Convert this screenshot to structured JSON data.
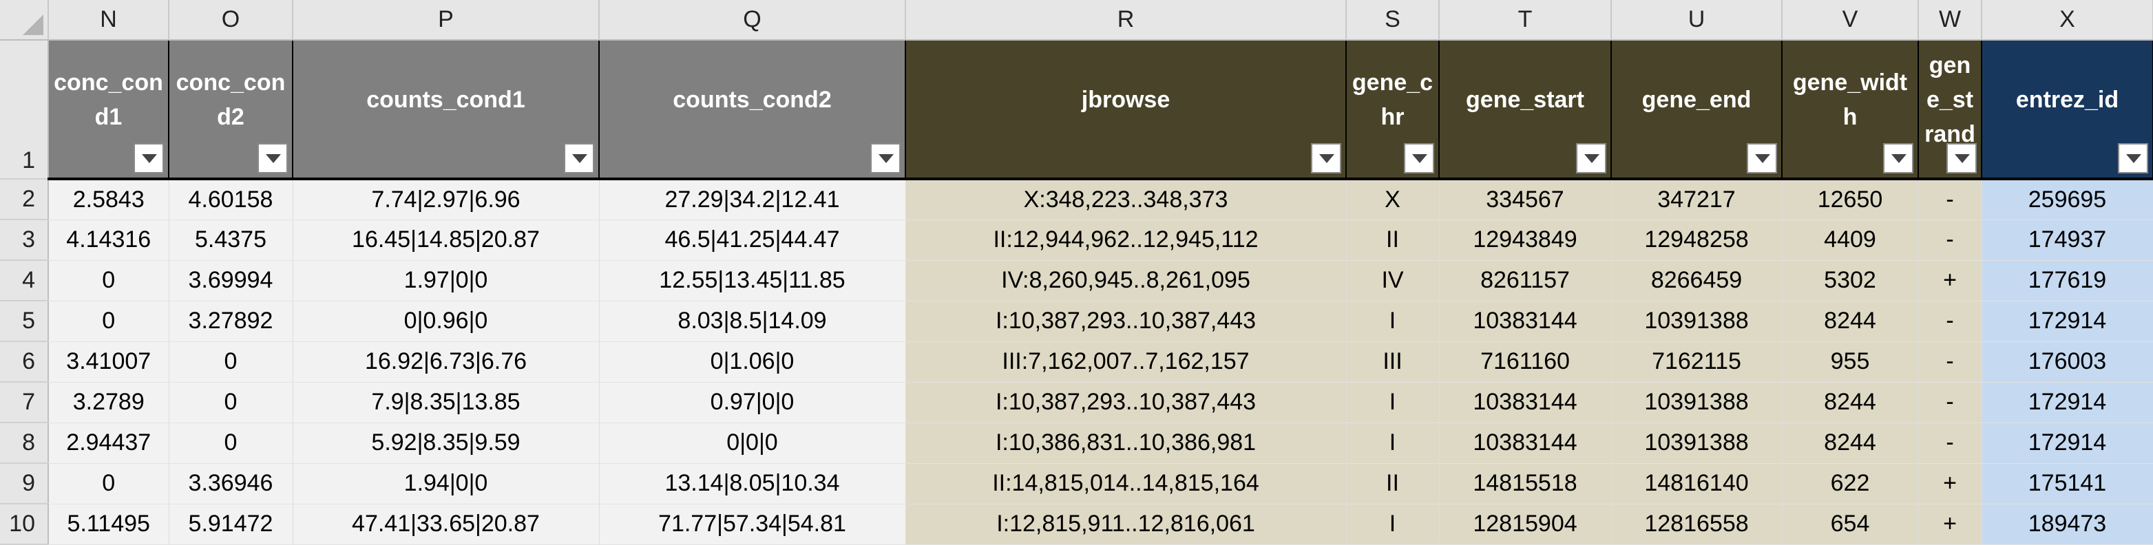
{
  "sheet": {
    "column_letters": [
      "N",
      "O",
      "P",
      "Q",
      "R",
      "S",
      "T",
      "U",
      "V",
      "W",
      "X"
    ],
    "headers": [
      "conc_cond1",
      "conc_cond2",
      "counts_cond1",
      "counts_cond2",
      "jbrowse",
      "gene_chr",
      "gene_start",
      "gene_end",
      "gene_width",
      "gene_strand",
      "entrez_id"
    ],
    "header_row_number": "1",
    "rows": [
      {
        "n": "2",
        "cells": [
          "2.5843",
          "4.60158",
          "7.74|2.97|6.96",
          "27.29|34.2|12.41",
          "X:348,223..348,373",
          "X",
          "334567",
          "347217",
          "12650",
          "-",
          "259695"
        ]
      },
      {
        "n": "3",
        "cells": [
          "4.14316",
          "5.4375",
          "16.45|14.85|20.87",
          "46.5|41.25|44.47",
          "II:12,944,962..12,945,112",
          "II",
          "12943849",
          "12948258",
          "4409",
          "-",
          "174937"
        ]
      },
      {
        "n": "4",
        "cells": [
          "0",
          "3.69994",
          "1.97|0|0",
          "12.55|13.45|11.85",
          "IV:8,260,945..8,261,095",
          "IV",
          "8261157",
          "8266459",
          "5302",
          "+",
          "177619"
        ]
      },
      {
        "n": "5",
        "cells": [
          "0",
          "3.27892",
          "0|0.96|0",
          "8.03|8.5|14.09",
          "I:10,387,293..10,387,443",
          "I",
          "10383144",
          "10391388",
          "8244",
          "-",
          "172914"
        ]
      },
      {
        "n": "6",
        "cells": [
          "3.41007",
          "0",
          "16.92|6.73|6.76",
          "0|1.06|0",
          "III:7,162,007..7,162,157",
          "III",
          "7161160",
          "7162115",
          "955",
          "-",
          "176003"
        ]
      },
      {
        "n": "7",
        "cells": [
          "3.2789",
          "0",
          "7.9|8.35|13.85",
          "0.97|0|0",
          "I:10,387,293..10,387,443",
          "I",
          "10383144",
          "10391388",
          "8244",
          "-",
          "172914"
        ]
      },
      {
        "n": "8",
        "cells": [
          "2.94437",
          "0",
          "5.92|8.35|9.59",
          "0|0|0",
          "I:10,386,831..10,386,981",
          "I",
          "10383144",
          "10391388",
          "8244",
          "-",
          "172914"
        ]
      },
      {
        "n": "9",
        "cells": [
          "0",
          "3.36946",
          "1.94|0|0",
          "13.14|8.05|10.34",
          "II:14,815,014..14,815,164",
          "II",
          "14815518",
          "14816140",
          "622",
          "+",
          "175141"
        ]
      },
      {
        "n": "10",
        "cells": [
          "5.11495",
          "5.91472",
          "47.41|33.65|20.87",
          "71.77|57.34|54.81",
          "I:12,815,911..12,816,061",
          "I",
          "12815904",
          "12816558",
          "654",
          "+",
          "189473"
        ]
      }
    ],
    "colors": {
      "header_gray": "#808080",
      "header_olive": "#494429",
      "header_navy": "#17375d",
      "cell_gray": "#f2f2f2",
      "cell_tan": "#ddd9c4",
      "cell_blue": "#c5d9f1"
    }
  }
}
